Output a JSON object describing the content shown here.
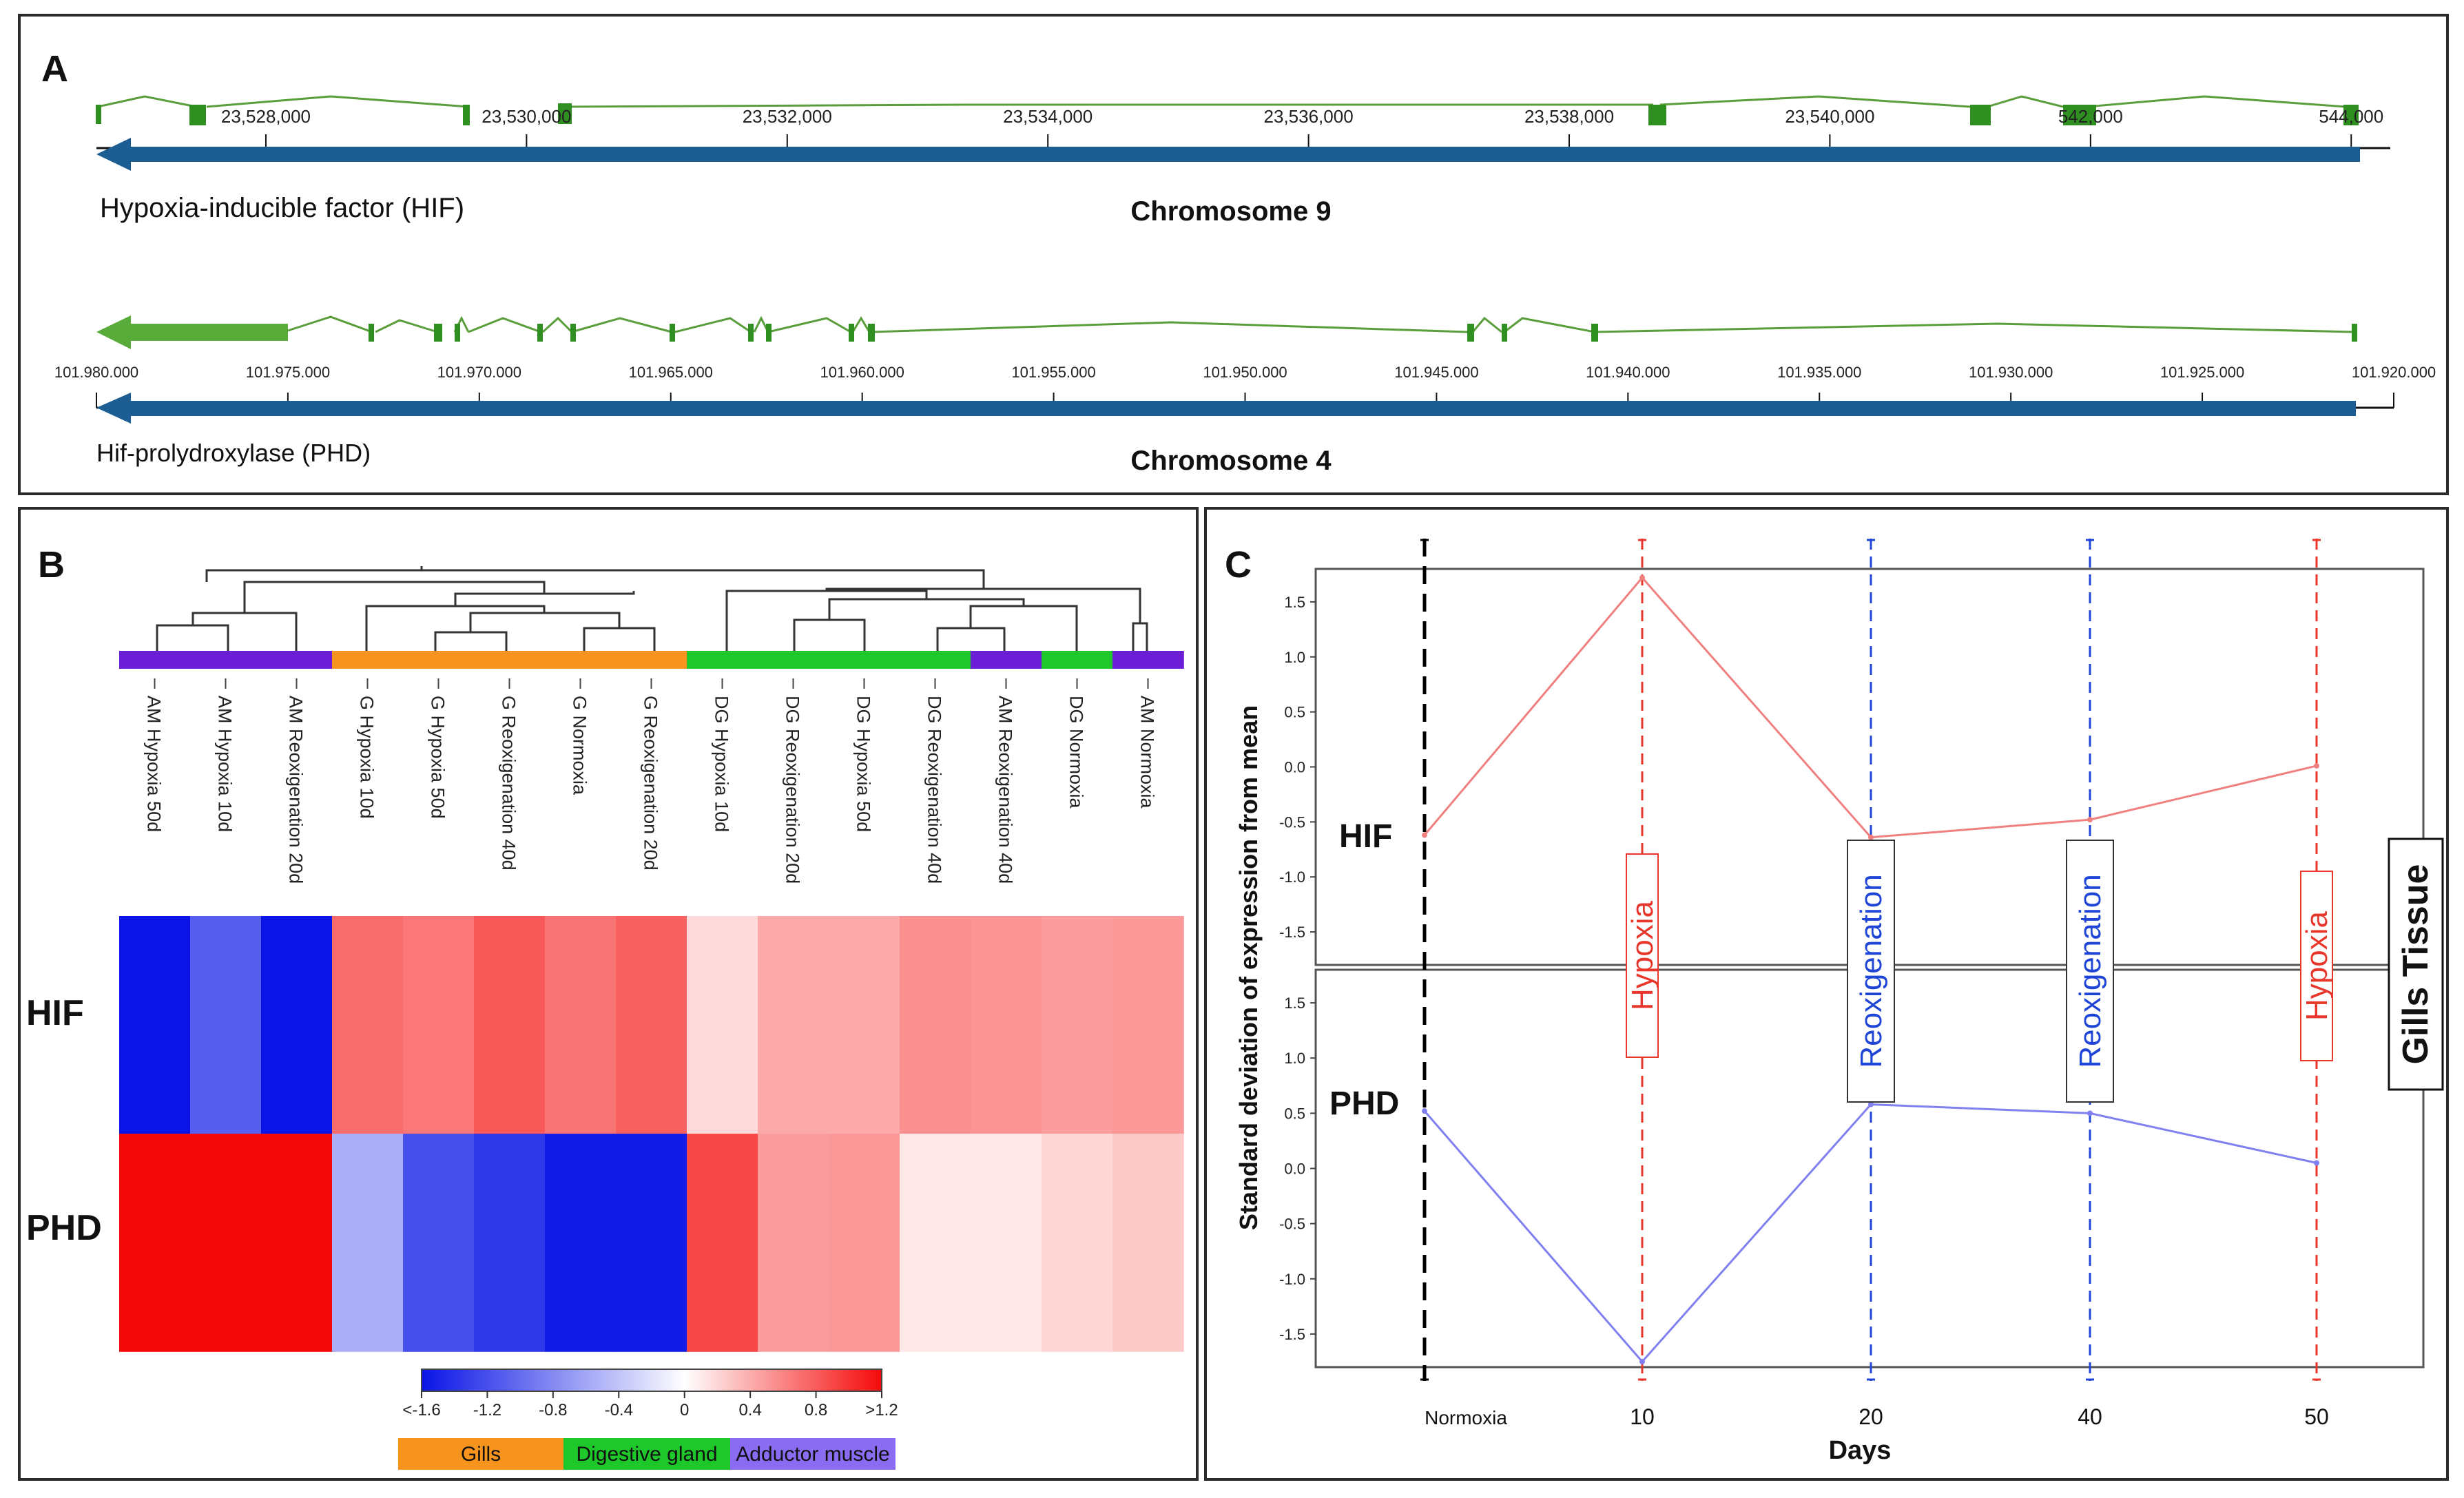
{
  "panel_a": {
    "label": "A",
    "hif": {
      "gene_label": "Hypoxia-inducible factor (HIF)",
      "chromosome_label": "Chromosome 9",
      "ticks": [
        "23,528,000",
        "23,530,000",
        "23,532,000",
        "23,534,000",
        "23,536,000",
        "23,538,000",
        "23,540,000",
        "542,000",
        "544,000"
      ],
      "tick_values": [
        23528000,
        23530000,
        23532000,
        23534000,
        23536000,
        23538000,
        23540000,
        23542000,
        23544000
      ],
      "range": [
        23526700,
        23544300
      ]
    },
    "phd": {
      "gene_label": "Hif-prolydroxylase (PHD)",
      "chromosome_label": "Chromosome 4",
      "ticks": [
        "101.980.000",
        "101.975.000",
        "101.970.000",
        "101.965.000",
        "101.960.000",
        "101.955.000",
        "101.950.000",
        "101.945.000",
        "101.940.000",
        "101.935.000",
        "101.930.000",
        "101.925.000",
        "101.920.000"
      ],
      "tick_values": [
        101980000,
        101975000,
        101970000,
        101965000,
        101960000,
        101955000,
        101950000,
        101945000,
        101940000,
        101935000,
        101930000,
        101925000,
        101920000
      ],
      "range": [
        101980000,
        101920000
      ]
    },
    "colors": {
      "gene_arrow": "#1c5e94",
      "exon": "#2f8f21",
      "intron": "#5a9e3c"
    }
  },
  "panel_b": {
    "label": "B",
    "columns": [
      "AM Hypoxia 50d",
      "AM Hypoxia 10d",
      "AM Reoxigenation 20d",
      "G Hypoxia 10d",
      "G Hypoxia 50d",
      "G Reoxigenation 40d",
      "G Normoxia",
      "G Reoxigenation 20d",
      "DG Hypoxia 10d",
      "DG Reoxigenation 20d",
      "DG Hypoxia 50d",
      "DG Reoxigenation 40d",
      "AM Reoxigenation 40d",
      "DG Normoxia",
      "AM Normoxia"
    ],
    "column_tissue": [
      "Adductor muscle",
      "Adductor muscle",
      "Adductor muscle",
      "Gills",
      "Gills",
      "Gills",
      "Gills",
      "Gills",
      "Digestive gland",
      "Digestive gland",
      "Digestive gland",
      "Digestive gland",
      "Adductor muscle",
      "Digestive gland",
      "Adductor muscle"
    ],
    "rows": [
      "HIF",
      "PHD"
    ],
    "values": [
      [
        -1.6,
        -1.1,
        -1.6,
        0.72,
        0.66,
        0.82,
        0.68,
        0.78,
        0.18,
        0.42,
        0.42,
        0.55,
        0.52,
        0.48,
        0.5
      ],
      [
        1.2,
        1.2,
        1.2,
        -0.55,
        -1.2,
        -1.35,
        -1.55,
        -1.55,
        0.9,
        0.48,
        0.5,
        0.12,
        0.12,
        0.2,
        0.26
      ]
    ],
    "colorbar": {
      "tick_labels": [
        "<-1.6",
        "-1.2",
        "-0.8",
        "-0.4",
        "0",
        "0.4",
        "0.8",
        ">1.2"
      ],
      "min": -1.6,
      "max": 1.2,
      "low_color": "#0a14e6",
      "mid_color": "#ffffff",
      "high_color": "#f50a0a"
    },
    "tissue_legend": [
      {
        "name": "Gills",
        "color": "#f7941d"
      },
      {
        "name": "Digestive gland",
        "color": "#1ec82b"
      },
      {
        "name": "Adductor muscle",
        "color": "#8a6cf2"
      }
    ],
    "bar_colors": {
      "Gills": "#f7941d",
      "Digestive gland": "#1ec82b",
      "Adductor muscle": "#6a1fd6"
    }
  },
  "chart_data": {
    "type": "line",
    "panel_label": "C",
    "x": [
      "Normoxia",
      10,
      20,
      40,
      50
    ],
    "x_tick_labels": [
      "Normoxia",
      "10",
      "20",
      "40",
      "50"
    ],
    "xlabel": "Days",
    "ylabel": "Standard deviation of expression from mean",
    "ylim": [
      -1.8,
      1.8
    ],
    "y_ticks": [
      1.5,
      1.0,
      0.5,
      0.0,
      -0.5,
      -1.0,
      -1.5
    ],
    "y_tick_labels": [
      "1.5",
      "1.0",
      "0.5",
      "0.0",
      "-0.5",
      "-1.0",
      "-1.5"
    ],
    "series": [
      {
        "name": "HIF",
        "values": [
          -0.62,
          1.72,
          -0.64,
          -0.48,
          0.01
        ],
        "color": "#f08080"
      },
      {
        "name": "PHD",
        "values": [
          0.52,
          -1.75,
          0.58,
          0.5,
          0.05
        ],
        "color": "#8080f0"
      }
    ],
    "annotations": [
      "Hypoxia",
      "Reoxigenation",
      "Reoxigenation",
      "Hypoxia"
    ],
    "annotation_colors": [
      "#e8362b",
      "#1f45d6",
      "#1f45d6",
      "#e8362b"
    ],
    "side_label": "Gills Tissue"
  }
}
